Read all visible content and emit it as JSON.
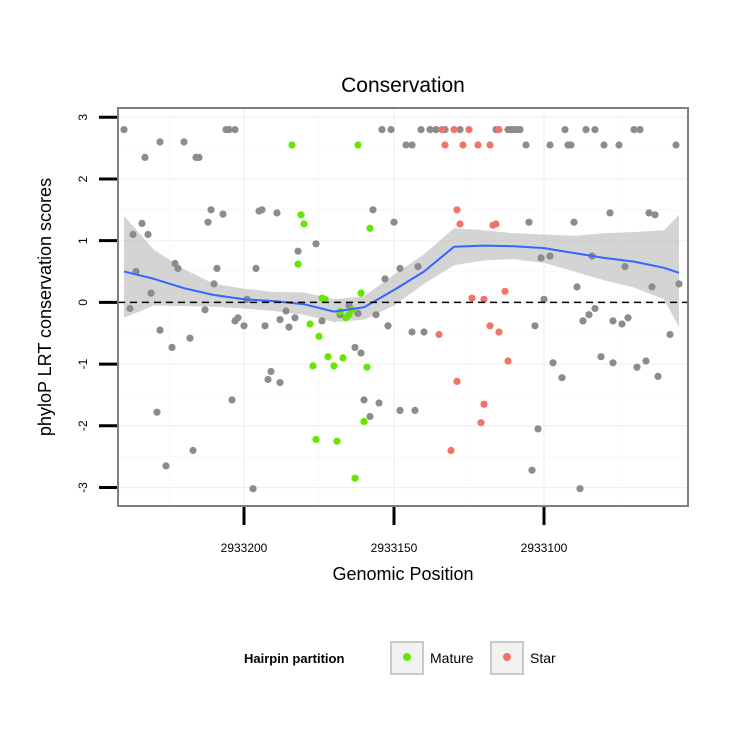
{
  "chart_data": {
    "type": "scatter",
    "title": "Conservation",
    "xlabel": "Genomic Position",
    "ylabel": "phyloP LRT conservation scores",
    "x_reversed": true,
    "xlim": [
      2933242,
      2933052
    ],
    "ylim": [
      -3.3,
      3.15
    ],
    "x_ticks": [
      2933200,
      2933150,
      2933100
    ],
    "x_tick_labels": [
      "2933200",
      "2933150",
      "2933100"
    ],
    "y_ticks": [
      3,
      2,
      1,
      0,
      -1,
      -2,
      -3
    ],
    "y_tick_labels": [
      "3",
      "2",
      "1",
      "0",
      "-1",
      "-2",
      "-3"
    ],
    "reference_line": {
      "y": 0,
      "style": "dashed"
    },
    "grid": true,
    "legend": {
      "title": "Hairpin partition",
      "placement": "bottom",
      "entries": [
        {
          "label": "Mature",
          "color": "#66e600"
        },
        {
          "label": "Star",
          "color": "#f07468"
        }
      ]
    },
    "colors": {
      "other": "#8c8c8c",
      "mature": "#66e600",
      "star": "#f07468",
      "smooth": "#3366ff",
      "band": "#bdbdbd"
    },
    "series": [
      {
        "group": "other",
        "points": [
          [
            2933240,
            2.8
          ],
          [
            2933238,
            -0.1
          ],
          [
            2933237,
            1.1
          ],
          [
            2933236,
            0.5
          ],
          [
            2933234,
            1.28
          ],
          [
            2933233,
            2.35
          ],
          [
            2933232,
            1.1
          ],
          [
            2933231,
            0.15
          ],
          [
            2933228,
            2.6
          ],
          [
            2933229,
            -1.78
          ],
          [
            2933228,
            -0.45
          ],
          [
            2933226,
            -2.65
          ],
          [
            2933224,
            -0.73
          ],
          [
            2933223,
            0.63
          ],
          [
            2933222,
            0.55
          ],
          [
            2933220,
            2.6
          ],
          [
            2933218,
            -0.58
          ],
          [
            2933217,
            -2.4
          ],
          [
            2933216,
            2.35
          ],
          [
            2933215,
            2.35
          ],
          [
            2933213,
            -0.12
          ],
          [
            2933212,
            1.3
          ],
          [
            2933211,
            1.5
          ],
          [
            2933210,
            0.3
          ],
          [
            2933209,
            0.55
          ],
          [
            2933207,
            1.43
          ],
          [
            2933206,
            2.8
          ],
          [
            2933205,
            2.8
          ],
          [
            2933204,
            -1.58
          ],
          [
            2933203,
            2.8
          ],
          [
            2933203,
            -0.3
          ],
          [
            2933202,
            -0.25
          ],
          [
            2933200,
            -0.38
          ],
          [
            2933199,
            0.05
          ],
          [
            2933197,
            -3.02
          ],
          [
            2933196,
            0.55
          ],
          [
            2933195,
            1.48
          ],
          [
            2933194,
            1.5
          ],
          [
            2933193,
            -0.38
          ],
          [
            2933192,
            -1.25
          ],
          [
            2933191,
            -1.12
          ],
          [
            2933189,
            1.45
          ],
          [
            2933188,
            -1.3
          ],
          [
            2933188,
            -0.28
          ],
          [
            2933186,
            -0.14
          ],
          [
            2933185,
            -0.4
          ],
          [
            2933183,
            -0.25
          ],
          [
            2933182,
            0.83
          ],
          [
            2933176,
            0.95
          ],
          [
            2933174,
            -0.3
          ],
          [
            2933168,
            -0.2
          ],
          [
            2933165,
            -0.05
          ],
          [
            2933163,
            -0.73
          ],
          [
            2933162,
            -0.18
          ],
          [
            2933161,
            -0.82
          ],
          [
            2933160,
            -1.58
          ],
          [
            2933158,
            -1.85
          ],
          [
            2933157,
            1.5
          ],
          [
            2933156,
            -0.2
          ],
          [
            2933155,
            -1.63
          ],
          [
            2933154,
            2.8
          ],
          [
            2933153,
            0.38
          ],
          [
            2933152,
            -0.38
          ],
          [
            2933151,
            2.8
          ],
          [
            2933150,
            1.3
          ],
          [
            2933148,
            -1.75
          ],
          [
            2933148,
            0.55
          ],
          [
            2933146,
            2.55
          ],
          [
            2933144,
            -0.48
          ],
          [
            2933144,
            2.55
          ],
          [
            2933143,
            -1.75
          ],
          [
            2933142,
            0.58
          ],
          [
            2933141,
            2.8
          ],
          [
            2933140,
            -0.48
          ],
          [
            2933138,
            2.8
          ],
          [
            2933136,
            2.8
          ],
          [
            2933133,
            2.8
          ],
          [
            2933128,
            2.8
          ],
          [
            2933116,
            2.8
          ],
          [
            2933112,
            2.8
          ],
          [
            2933111,
            2.8
          ],
          [
            2933110,
            2.8
          ],
          [
            2933109,
            2.8
          ],
          [
            2933108,
            2.8
          ],
          [
            2933106,
            2.55
          ],
          [
            2933105,
            1.3
          ],
          [
            2933104,
            -2.72
          ],
          [
            2933103,
            -0.38
          ],
          [
            2933102,
            -2.05
          ],
          [
            2933101,
            0.72
          ],
          [
            2933100,
            0.05
          ],
          [
            2933098,
            2.55
          ],
          [
            2933098,
            0.75
          ],
          [
            2933097,
            -0.98
          ],
          [
            2933094,
            -1.22
          ],
          [
            2933093,
            2.8
          ],
          [
            2933092,
            2.55
          ],
          [
            2933091,
            2.55
          ],
          [
            2933090,
            1.3
          ],
          [
            2933089,
            0.25
          ],
          [
            2933088,
            -3.02
          ],
          [
            2933087,
            -0.3
          ],
          [
            2933086,
            2.8
          ],
          [
            2933085,
            -0.2
          ],
          [
            2933084,
            0.75
          ],
          [
            2933083,
            2.8
          ],
          [
            2933083,
            -0.1
          ],
          [
            2933081,
            -0.88
          ],
          [
            2933080,
            2.55
          ],
          [
            2933078,
            1.45
          ],
          [
            2933077,
            -0.3
          ],
          [
            2933077,
            -0.98
          ],
          [
            2933075,
            2.55
          ],
          [
            2933074,
            -0.35
          ],
          [
            2933073,
            0.58
          ],
          [
            2933072,
            -0.25
          ],
          [
            2933070,
            2.8
          ],
          [
            2933069,
            -1.05
          ],
          [
            2933068,
            2.8
          ],
          [
            2933066,
            -0.95
          ],
          [
            2933065,
            1.45
          ],
          [
            2933064,
            0.25
          ],
          [
            2933063,
            1.42
          ],
          [
            2933062,
            -1.2
          ],
          [
            2933058,
            -0.52
          ],
          [
            2933056,
            2.55
          ],
          [
            2933055,
            0.3
          ]
        ]
      },
      {
        "group": "mature",
        "points": [
          [
            2933184,
            2.55
          ],
          [
            2933182,
            0.62
          ],
          [
            2933181,
            1.42
          ],
          [
            2933180,
            1.27
          ],
          [
            2933178,
            -0.35
          ],
          [
            2933177,
            -1.03
          ],
          [
            2933176,
            -2.22
          ],
          [
            2933175,
            -0.55
          ],
          [
            2933174,
            0.07
          ],
          [
            2933173,
            0.05
          ],
          [
            2933172,
            -0.88
          ],
          [
            2933170,
            -1.03
          ],
          [
            2933169,
            -2.25
          ],
          [
            2933168,
            -0.15
          ],
          [
            2933167,
            -0.9
          ],
          [
            2933166,
            -0.25
          ],
          [
            2933165,
            -0.2
          ],
          [
            2933164,
            -0.12
          ],
          [
            2933163,
            -2.85
          ],
          [
            2933162,
            2.55
          ],
          [
            2933161,
            0.15
          ],
          [
            2933160,
            -1.93
          ],
          [
            2933159,
            -1.05
          ],
          [
            2933158,
            1.2
          ]
        ]
      },
      {
        "group": "star",
        "points": [
          [
            2933135,
            -0.52
          ],
          [
            2933134,
            2.8
          ],
          [
            2933133,
            2.55
          ],
          [
            2933131,
            -2.4
          ],
          [
            2933130,
            2.8
          ],
          [
            2933129,
            1.5
          ],
          [
            2933129,
            -1.28
          ],
          [
            2933128,
            1.27
          ],
          [
            2933127,
            2.55
          ],
          [
            2933125,
            2.8
          ],
          [
            2933124,
            0.07
          ],
          [
            2933122,
            2.55
          ],
          [
            2933121,
            -1.95
          ],
          [
            2933120,
            -1.65
          ],
          [
            2933120,
            0.05
          ],
          [
            2933118,
            2.55
          ],
          [
            2933118,
            -0.38
          ],
          [
            2933117,
            1.25
          ],
          [
            2933116,
            1.27
          ],
          [
            2933115,
            2.8
          ],
          [
            2933115,
            -0.48
          ],
          [
            2933113,
            0.18
          ],
          [
            2933112,
            -0.95
          ]
        ]
      }
    ],
    "smooth": {
      "method": "loess",
      "x": [
        2933240,
        2933230,
        2933220,
        2933210,
        2933200,
        2933190,
        2933180,
        2933170,
        2933160,
        2933150,
        2933140,
        2933130,
        2933120,
        2933110,
        2933100,
        2933090,
        2933080,
        2933070,
        2933060,
        2933055
      ],
      "y": [
        0.5,
        0.38,
        0.23,
        0.12,
        0.05,
        0.02,
        -0.03,
        -0.15,
        -0.08,
        0.2,
        0.5,
        0.9,
        0.92,
        0.91,
        0.88,
        0.8,
        0.72,
        0.66,
        0.56,
        0.48
      ],
      "lower": [
        -0.25,
        -0.05,
        -0.06,
        -0.07,
        -0.1,
        -0.14,
        -0.2,
        -0.32,
        -0.28,
        -0.05,
        0.3,
        0.6,
        0.68,
        0.7,
        0.64,
        0.5,
        0.36,
        0.24,
        0.05,
        -0.4
      ],
      "upper": [
        1.4,
        0.85,
        0.54,
        0.3,
        0.22,
        0.17,
        0.16,
        0.05,
        0.1,
        0.45,
        0.78,
        1.2,
        1.17,
        1.12,
        1.1,
        1.08,
        1.12,
        1.14,
        1.17,
        1.42
      ]
    }
  }
}
